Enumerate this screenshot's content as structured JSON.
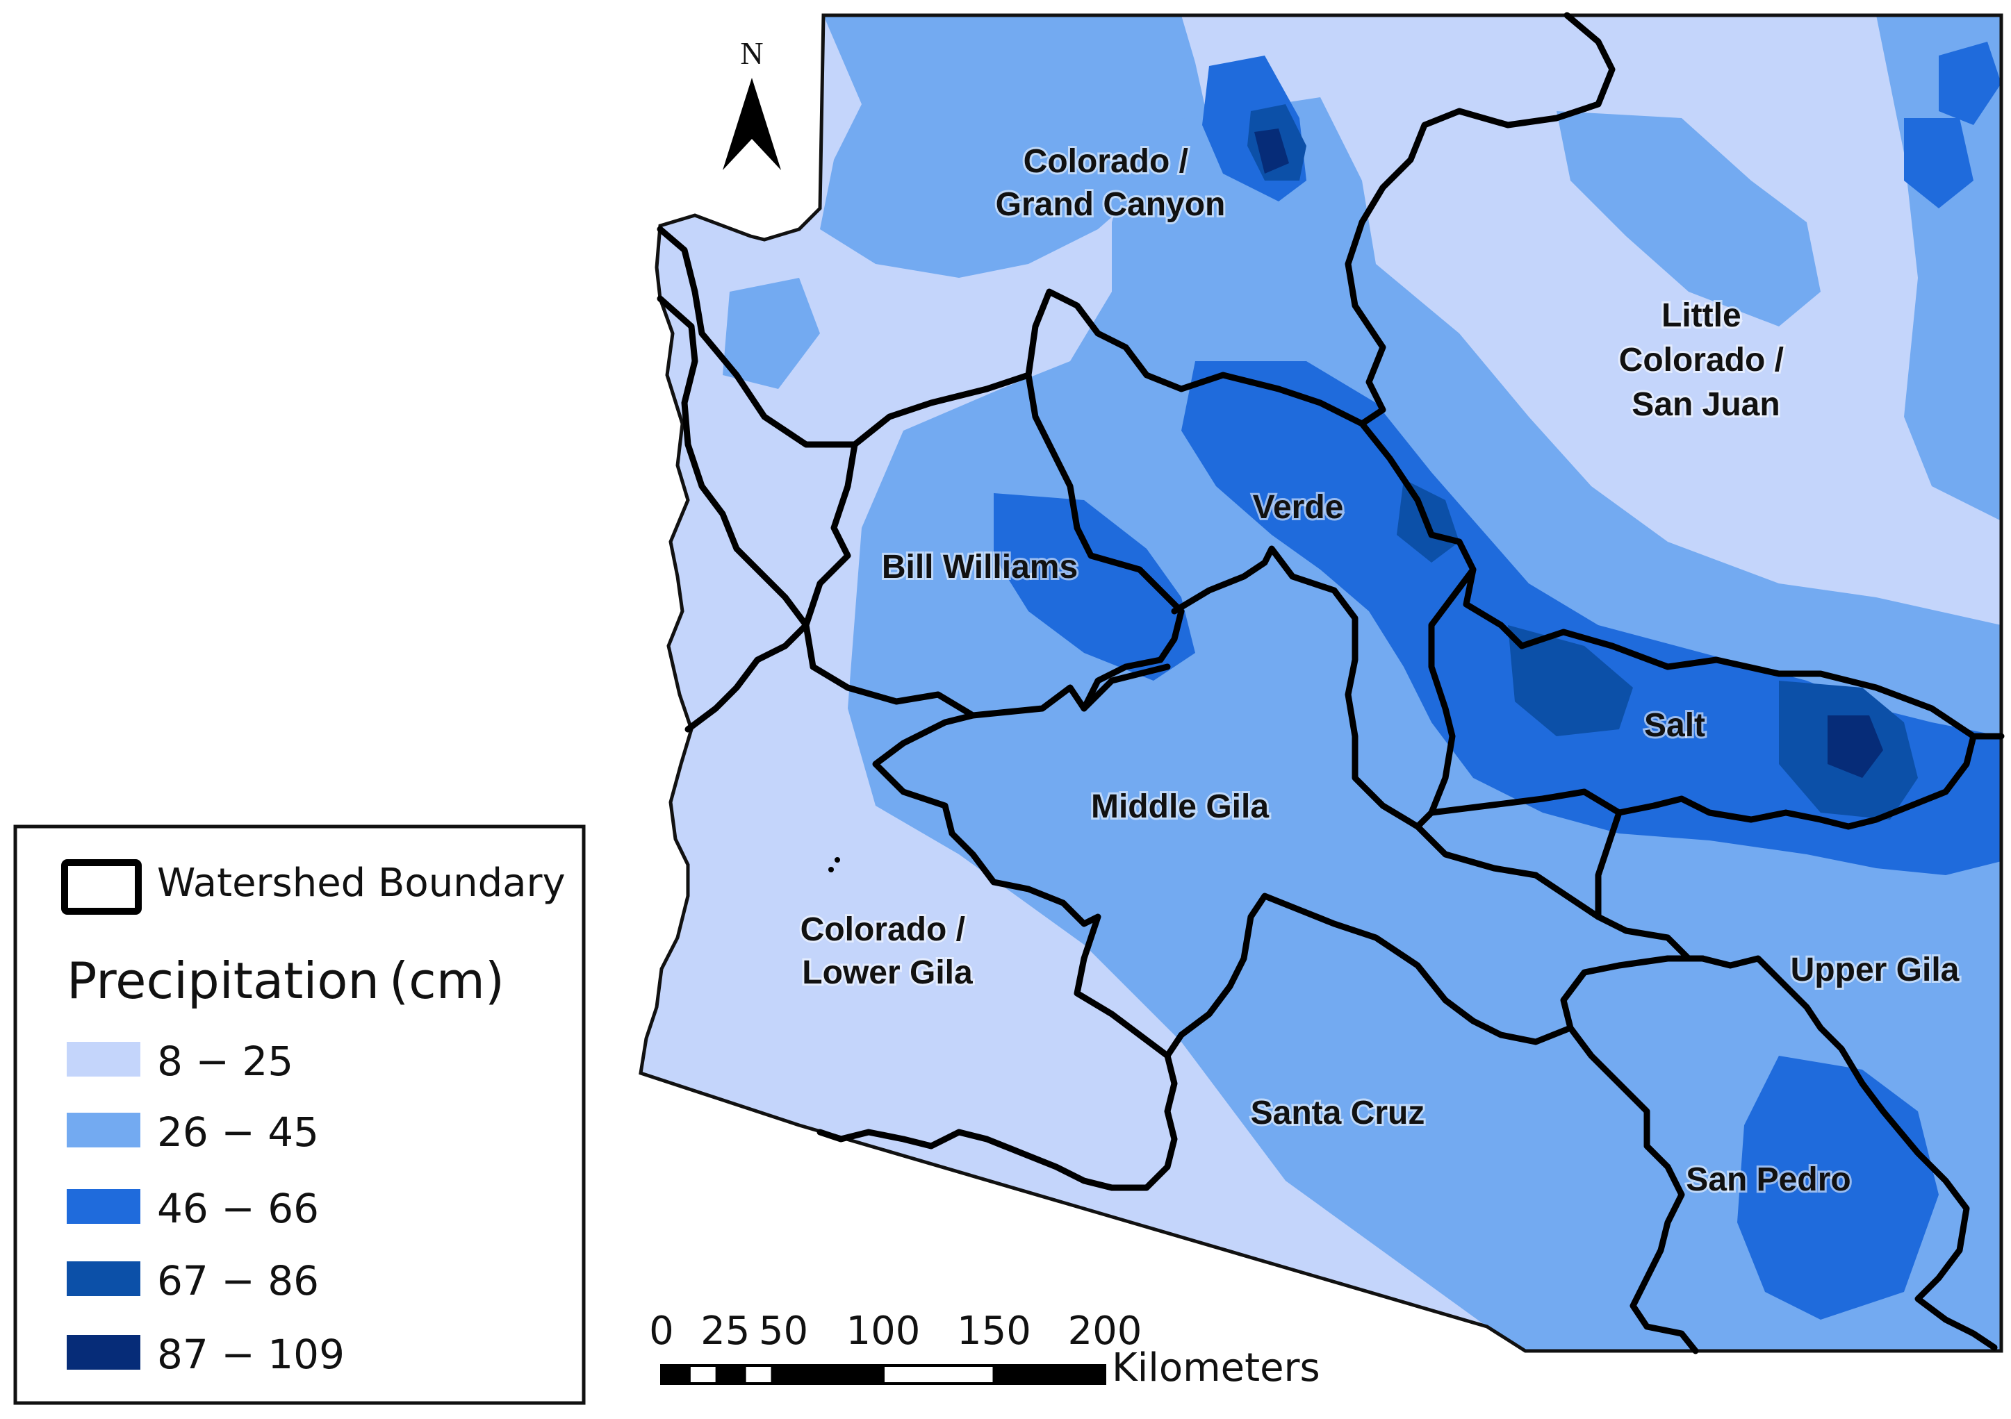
{
  "north_arrow": {
    "label": "N"
  },
  "regions": [
    {
      "id": "colorado-grand-canyon",
      "lines": [
        "Colorado /",
        "Grand Canyon"
      ]
    },
    {
      "id": "little-colorado-san-juan",
      "lines": [
        "Little",
        "Colorado /",
        "San Juan"
      ]
    },
    {
      "id": "verde",
      "lines": [
        "Verde"
      ]
    },
    {
      "id": "bill-williams",
      "lines": [
        "Bill Williams"
      ]
    },
    {
      "id": "salt",
      "lines": [
        "Salt"
      ]
    },
    {
      "id": "middle-gila",
      "lines": [
        "Middle Gila"
      ]
    },
    {
      "id": "colorado-lower-gila",
      "lines": [
        "Colorado /",
        "Lower Gila"
      ]
    },
    {
      "id": "upper-gila",
      "lines": [
        "Upper Gila"
      ]
    },
    {
      "id": "santa-cruz",
      "lines": [
        "Santa Cruz"
      ]
    },
    {
      "id": "san-pedro",
      "lines": [
        "San Pedro"
      ]
    }
  ],
  "legend": {
    "boundary_label": "Watershed Boundary",
    "title": "Precipitation",
    "unit": "(cm)",
    "classes": [
      {
        "label": "8 − 25",
        "color": "#c4d5fb"
      },
      {
        "label": "26 − 45",
        "color": "#73aaf1"
      },
      {
        "label": "46 − 66",
        "color": "#1f6bdc"
      },
      {
        "label": "67 − 86",
        "color": "#0c50a8"
      },
      {
        "label": "87 − 109",
        "color": "#062c78"
      }
    ]
  },
  "scale_bar": {
    "ticks": [
      "0",
      "25",
      "50",
      "100",
      "150",
      "200"
    ],
    "unit": "Kilometers"
  }
}
